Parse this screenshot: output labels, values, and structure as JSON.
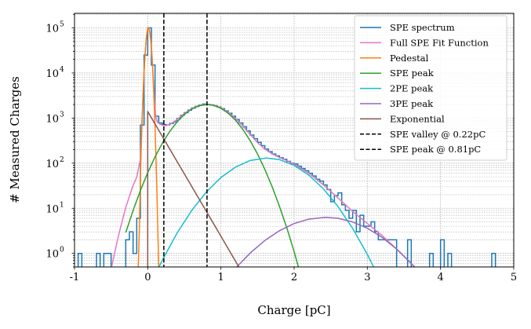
{
  "chart_data": {
    "type": "line",
    "title": "",
    "xlabel": "Charge [pC]",
    "ylabel": "# Measured Charges",
    "xlim": [
      -1,
      5
    ],
    "ylim": [
      0.5,
      210000
    ],
    "yscale": "log",
    "grid": true,
    "legend_position": "top-right",
    "x_ticks": [
      "-1",
      "0",
      "1",
      "2",
      "3",
      "4",
      "5"
    ],
    "y_ticks": [
      {
        "base": "10",
        "exp": "0"
      },
      {
        "base": "10",
        "exp": "1"
      },
      {
        "base": "10",
        "exp": "2"
      },
      {
        "base": "10",
        "exp": "3"
      },
      {
        "base": "10",
        "exp": "4"
      },
      {
        "base": "10",
        "exp": "5"
      }
    ],
    "histogram": {
      "name": "SPE spectrum",
      "color": "#1f77b4",
      "bin_width": 0.05,
      "bins": [
        [
          -0.95,
          1
        ],
        [
          -0.7,
          1
        ],
        [
          -0.6,
          1
        ],
        [
          -0.55,
          1
        ],
        [
          -0.3,
          2
        ],
        [
          -0.25,
          3
        ],
        [
          -0.2,
          1
        ],
        [
          -0.15,
          6
        ],
        [
          -0.1,
          700
        ],
        [
          -0.05,
          25000
        ],
        [
          0.0,
          100000
        ],
        [
          0.05,
          15000
        ],
        [
          0.1,
          1100
        ],
        [
          0.15,
          780
        ],
        [
          0.2,
          720
        ],
        [
          0.25,
          700
        ],
        [
          0.3,
          760
        ],
        [
          0.35,
          820
        ],
        [
          0.4,
          980
        ],
        [
          0.45,
          1150
        ],
        [
          0.5,
          1320
        ],
        [
          0.55,
          1500
        ],
        [
          0.6,
          1680
        ],
        [
          0.65,
          1820
        ],
        [
          0.7,
          1940
        ],
        [
          0.75,
          2050
        ],
        [
          0.8,
          2000
        ],
        [
          0.85,
          1960
        ],
        [
          0.9,
          1880
        ],
        [
          0.95,
          1760
        ],
        [
          1.0,
          1620
        ],
        [
          1.05,
          1450
        ],
        [
          1.1,
          1280
        ],
        [
          1.15,
          1100
        ],
        [
          1.2,
          930
        ],
        [
          1.25,
          780
        ],
        [
          1.3,
          640
        ],
        [
          1.35,
          520
        ],
        [
          1.4,
          420
        ],
        [
          1.45,
          350
        ],
        [
          1.5,
          290
        ],
        [
          1.55,
          245
        ],
        [
          1.6,
          205
        ],
        [
          1.65,
          180
        ],
        [
          1.7,
          160
        ],
        [
          1.75,
          145
        ],
        [
          1.8,
          132
        ],
        [
          1.85,
          122
        ],
        [
          1.9,
          110
        ],
        [
          1.95,
          100
        ],
        [
          2.0,
          96
        ],
        [
          2.05,
          85
        ],
        [
          2.1,
          76
        ],
        [
          2.15,
          68
        ],
        [
          2.2,
          60
        ],
        [
          2.25,
          52
        ],
        [
          2.3,
          44
        ],
        [
          2.35,
          40
        ],
        [
          2.4,
          33
        ],
        [
          2.45,
          26
        ],
        [
          2.5,
          14
        ],
        [
          2.55,
          19
        ],
        [
          2.6,
          22
        ],
        [
          2.65,
          12
        ],
        [
          2.7,
          9
        ],
        [
          2.75,
          6
        ],
        [
          2.8,
          9
        ],
        [
          2.85,
          3
        ],
        [
          2.9,
          7
        ],
        [
          2.95,
          4
        ],
        [
          3.0,
          4
        ],
        [
          3.05,
          5
        ],
        [
          3.1,
          3
        ],
        [
          3.15,
          2
        ],
        [
          3.2,
          2
        ],
        [
          3.25,
          2
        ],
        [
          3.3,
          2
        ],
        [
          3.35,
          2
        ],
        [
          3.55,
          2
        ],
        [
          3.85,
          1
        ],
        [
          4.0,
          2
        ],
        [
          4.1,
          1
        ],
        [
          4.7,
          1
        ]
      ]
    },
    "series": [
      {
        "name": "Full SPE Fit Function",
        "color": "#e377c2",
        "points": [
          [
            -0.5,
            0.44
          ],
          [
            -0.45,
            1.06
          ],
          [
            -0.4,
            2.45
          ],
          [
            -0.3,
            10.5
          ],
          [
            -0.2,
            32
          ],
          [
            -0.15,
            49
          ],
          [
            -0.1,
            122
          ],
          [
            -0.08,
            717
          ],
          [
            -0.06,
            4780
          ],
          [
            -0.04,
            21000
          ],
          [
            -0.02,
            57000
          ],
          [
            0,
            95500
          ],
          [
            0.01,
            101000
          ],
          [
            0.03,
            79000
          ],
          [
            0.05,
            38000
          ],
          [
            0.07,
            11600
          ],
          [
            0.09,
            2780
          ],
          [
            0.11,
            1060
          ],
          [
            0.13,
            812
          ],
          [
            0.16,
            750
          ],
          [
            0.2,
            693
          ],
          [
            0.25,
            678
          ],
          [
            0.3,
            718
          ],
          [
            0.35,
            806
          ],
          [
            0.4,
            934
          ],
          [
            0.5,
            1264
          ],
          [
            0.6,
            1623
          ],
          [
            0.7,
            1906
          ],
          [
            0.81,
            2031
          ],
          [
            0.9,
            1954
          ],
          [
            1.0,
            1701
          ],
          [
            1.1,
            1346
          ],
          [
            1.2,
            975
          ],
          [
            1.3,
            660
          ],
          [
            1.4,
            431
          ],
          [
            1.5,
            286
          ],
          [
            1.6,
            205
          ],
          [
            1.7,
            161
          ],
          [
            1.8,
            134
          ],
          [
            1.9,
            114
          ],
          [
            2.0,
            95
          ],
          [
            2.2,
            60
          ],
          [
            2.4,
            33
          ],
          [
            2.6,
            17
          ],
          [
            2.8,
            8.5
          ],
          [
            3.0,
            4.6
          ],
          [
            3.2,
            2.5
          ],
          [
            3.4,
            1.25
          ],
          [
            3.6,
            0.6
          ],
          [
            3.7,
            0.4
          ]
        ]
      },
      {
        "name": "Pedestal",
        "color": "#ff7f0e",
        "points": [
          [
            -0.13,
            0.48
          ],
          [
            -0.115,
            3
          ],
          [
            -0.095,
            100
          ],
          [
            -0.08,
            635
          ],
          [
            -0.065,
            3000
          ],
          [
            -0.05,
            10500
          ],
          [
            -0.035,
            28000
          ],
          [
            -0.02,
            57000
          ],
          [
            -0.005,
            87000
          ],
          [
            0.01,
            100000
          ],
          [
            0.025,
            87000
          ],
          [
            0.04,
            57000
          ],
          [
            0.055,
            28000
          ],
          [
            0.07,
            10500
          ],
          [
            0.085,
            3000
          ],
          [
            0.1,
            635
          ],
          [
            0.115,
            100
          ],
          [
            0.13,
            12
          ],
          [
            0.145,
            1.1
          ],
          [
            0.15,
            0.48
          ]
        ]
      },
      {
        "name": "SPE peak",
        "color": "#2ca02c",
        "points": [
          [
            -0.3,
            2.9
          ],
          [
            -0.2,
            8.9
          ],
          [
            -0.1,
            24.8
          ],
          [
            0,
            61.6
          ],
          [
            0.1,
            138
          ],
          [
            0.2,
            278
          ],
          [
            0.3,
            503
          ],
          [
            0.4,
            820
          ],
          [
            0.5,
            1201
          ],
          [
            0.6,
            1583
          ],
          [
            0.7,
            1876
          ],
          [
            0.81,
            2000
          ],
          [
            0.9,
            1916
          ],
          [
            1.0,
            1651
          ],
          [
            1.1,
            1280
          ],
          [
            1.2,
            892
          ],
          [
            1.3,
            559
          ],
          [
            1.4,
            315
          ],
          [
            1.5,
            160
          ],
          [
            1.6,
            73
          ],
          [
            1.7,
            30
          ],
          [
            1.8,
            11
          ],
          [
            1.9,
            3.7
          ],
          [
            2.0,
            1.09
          ],
          [
            2.1,
            0.29
          ]
        ]
      },
      {
        "name": "2PE peak",
        "color": "#17becf",
        "points": [
          [
            0.1,
            0.33
          ],
          [
            0.2,
            0.71
          ],
          [
            0.4,
            2.8
          ],
          [
            0.6,
            8.9
          ],
          [
            0.8,
            22.9
          ],
          [
            1.0,
            48.2
          ],
          [
            1.2,
            82
          ],
          [
            1.4,
            115
          ],
          [
            1.62,
            130
          ],
          [
            1.8,
            120
          ],
          [
            2.0,
            89.5
          ],
          [
            2.2,
            54.5
          ],
          [
            2.4,
            27
          ],
          [
            2.6,
            10.9
          ],
          [
            2.8,
            3.56
          ],
          [
            3.0,
            0.95
          ],
          [
            3.1,
            0.45
          ]
        ]
      },
      {
        "name": "3PE peak",
        "color": "#9467bd",
        "points": [
          [
            1.2,
            0.47
          ],
          [
            1.4,
            1.02
          ],
          [
            1.6,
            1.93
          ],
          [
            1.8,
            3.19
          ],
          [
            2.0,
            4.59
          ],
          [
            2.2,
            5.75
          ],
          [
            2.43,
            6.3
          ],
          [
            2.6,
            6.0
          ],
          [
            2.8,
            4.98
          ],
          [
            3.0,
            3.61
          ],
          [
            3.2,
            2.28
          ],
          [
            3.4,
            1.25
          ],
          [
            3.6,
            0.6
          ],
          [
            3.7,
            0.4
          ]
        ]
      },
      {
        "name": "Exponential",
        "color": "#8c564b",
        "points": [
          [
            0,
            0.3
          ],
          [
            0,
            1400
          ],
          [
            0.1,
            741
          ],
          [
            0.2,
            392
          ],
          [
            0.4,
            110
          ],
          [
            0.6,
            30.7
          ],
          [
            0.8,
            8.6
          ],
          [
            1.0,
            2.4
          ],
          [
            1.2,
            0.67
          ],
          [
            1.3,
            0.35
          ]
        ]
      }
    ],
    "vlines": [
      {
        "name": "SPE valley @ 0.22pC",
        "x": 0.22,
        "color": "#000000",
        "style": "dashed"
      },
      {
        "name": "SPE peak @ 0.81pC",
        "x": 0.81,
        "color": "#000000",
        "style": "dashed"
      }
    ],
    "legend": [
      {
        "label": "SPE spectrum",
        "color": "#1f77b4",
        "style": "solid"
      },
      {
        "label": "Full SPE Fit Function",
        "color": "#e377c2",
        "style": "solid"
      },
      {
        "label": "Pedestal",
        "color": "#ff7f0e",
        "style": "solid"
      },
      {
        "label": "SPE peak",
        "color": "#2ca02c",
        "style": "solid"
      },
      {
        "label": "2PE peak",
        "color": "#17becf",
        "style": "solid"
      },
      {
        "label": "3PE peak",
        "color": "#9467bd",
        "style": "solid"
      },
      {
        "label": "Exponential",
        "color": "#8c564b",
        "style": "solid"
      },
      {
        "label": "SPE valley @ 0.22pC",
        "color": "#000000",
        "style": "dashed"
      },
      {
        "label": "SPE peak @ 0.81pC",
        "color": "#000000",
        "style": "dashed"
      }
    ]
  }
}
